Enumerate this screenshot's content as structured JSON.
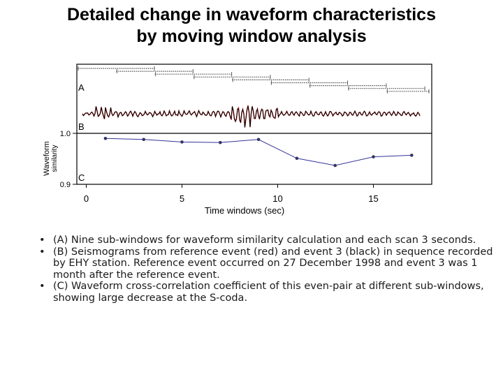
{
  "slide": {
    "title_line1": "Detailed change in waveform characteristics",
    "title_line2": "by moving window analysis"
  },
  "figure": {
    "panel_a_label": "A",
    "panel_b_label": "B",
    "panel_c_label": "C",
    "ylabel_line1": "Waveform",
    "ylabel_line2": "similarity",
    "xlabel": "Time windows (sec)",
    "y_ticks": [
      "1.0",
      "0.9"
    ],
    "x_ticks": [
      "0",
      "5",
      "10",
      "15"
    ],
    "colors": {
      "reference": "#cc2222",
      "event3": "#000000",
      "similarity": "#333399"
    }
  },
  "chart_data": {
    "type": "line",
    "xlabel": "Time windows (sec)",
    "ylabel": "Waveform similarity",
    "xlim": [
      -0.5,
      18
    ],
    "ylim": [
      0.9,
      1.0
    ],
    "x": [
      1,
      3,
      5,
      7,
      9,
      11,
      13,
      15,
      17
    ],
    "values": [
      0.99,
      0.988,
      0.983,
      0.982,
      0.988,
      0.951,
      0.937,
      0.954,
      0.957
    ]
  },
  "bullets": [
    {
      "dot": "•",
      "text": "(A) Nine sub-windows for waveform similarity calculation and each scan 3 seconds."
    },
    {
      "dot": "•",
      "text": "(B) Seismograms from reference event (red) and event 3 (black) in sequence recorded by EHY station. Reference event occurred on 27 December 1998 and event 3 was 1 month after the reference event."
    },
    {
      "dot": "•",
      "text": "(C) Waveform cross-correlation coefficient of this even-pair at different sub-windows, showing large decrease at the S-coda."
    }
  ]
}
